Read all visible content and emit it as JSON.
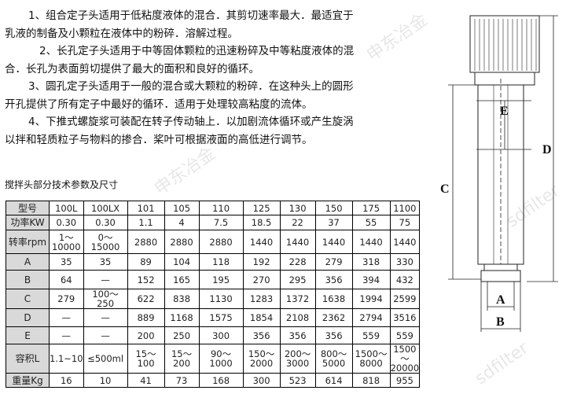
{
  "paragraphs": [
    {
      "line1": "1、组合定子头适用于低粘度液体的混合．其剪切速率最大．最适宜于",
      "line2": "乳液的制备及小颗粒在液体中的粉碎．溶解过程。"
    },
    {
      "line1": "2、长孔定子头适用于中等固体颗粒的迅速粉碎及中等粘度液体的混",
      "line2": "合．长孔为表面剪切提供了最大的面积和良好的循环。"
    },
    {
      "line1": "3、圆孔定子头适用于一般的混合或大颗粒的粉碎．在这种头上的圆形",
      "line2": "开孔提供了所有定子中最好的循环．适用于处理较高粘度的流体。"
    },
    {
      "line1": "4、下推式螺旋浆可装配在转子传动轴上．以加剧流体循环或产生旋涡",
      "line2": "以拌和轻质粒子与物料的掺合．桨叶可根据液面的高低进行调节。"
    }
  ],
  "caption": "搅拌头部分技术参数及尺寸",
  "table": {
    "rows": [
      {
        "label": "型号",
        "cells": [
          "100L",
          "100LX",
          "101",
          "105",
          "110",
          "125",
          "130",
          "150",
          "175",
          "1100"
        ]
      },
      {
        "label": "功率KW",
        "cells": [
          "0.30",
          "0.30",
          "1.1",
          "4",
          "7.5",
          "18.5",
          "22",
          "37",
          "55",
          "75"
        ]
      },
      {
        "label": "转率rpm",
        "cells": [
          "1～10000",
          "0～15000",
          "2880",
          "2880",
          "2880",
          "1440",
          "1440",
          "1440",
          "1440",
          "1440"
        ]
      },
      {
        "label": "A",
        "cells": [
          "35",
          "35",
          "89",
          "104",
          "118",
          "192",
          "228",
          "279",
          "318",
          "330"
        ]
      },
      {
        "label": "B",
        "cells": [
          "64",
          "—",
          "152",
          "165",
          "195",
          "270",
          "295",
          "356",
          "394",
          "432"
        ]
      },
      {
        "label": "C",
        "cells": [
          "279",
          "100～250",
          "622",
          "838",
          "1130",
          "1283",
          "1372",
          "1638",
          "1994",
          "2599"
        ]
      },
      {
        "label": "D",
        "cells": [
          "—",
          "—",
          "889",
          "1168",
          "1575",
          "1854",
          "2108",
          "2362",
          "2794",
          "3516"
        ]
      },
      {
        "label": "E",
        "cells": [
          "—",
          "—",
          "200",
          "250",
          "300",
          "356",
          "356",
          "356",
          "559",
          "559"
        ]
      },
      {
        "label": "容积L",
        "cells": [
          "1.1~10",
          "≤500ml",
          "15～100",
          "15～200",
          "90～1000",
          "150～2000",
          "200～3000",
          "800～5000",
          "1500～8000",
          "1500～20000"
        ]
      },
      {
        "label": "重量Kg",
        "cells": [
          "16",
          "10",
          "41",
          "73",
          "168",
          "300",
          "523",
          "614",
          "818",
          "955"
        ]
      }
    ]
  },
  "diagram": {
    "labels": {
      "A": "A",
      "B": "B",
      "C": "C",
      "D": "D",
      "E": "E"
    }
  },
  "watermarks": [
    "申东冶金",
    "sdfilter"
  ]
}
